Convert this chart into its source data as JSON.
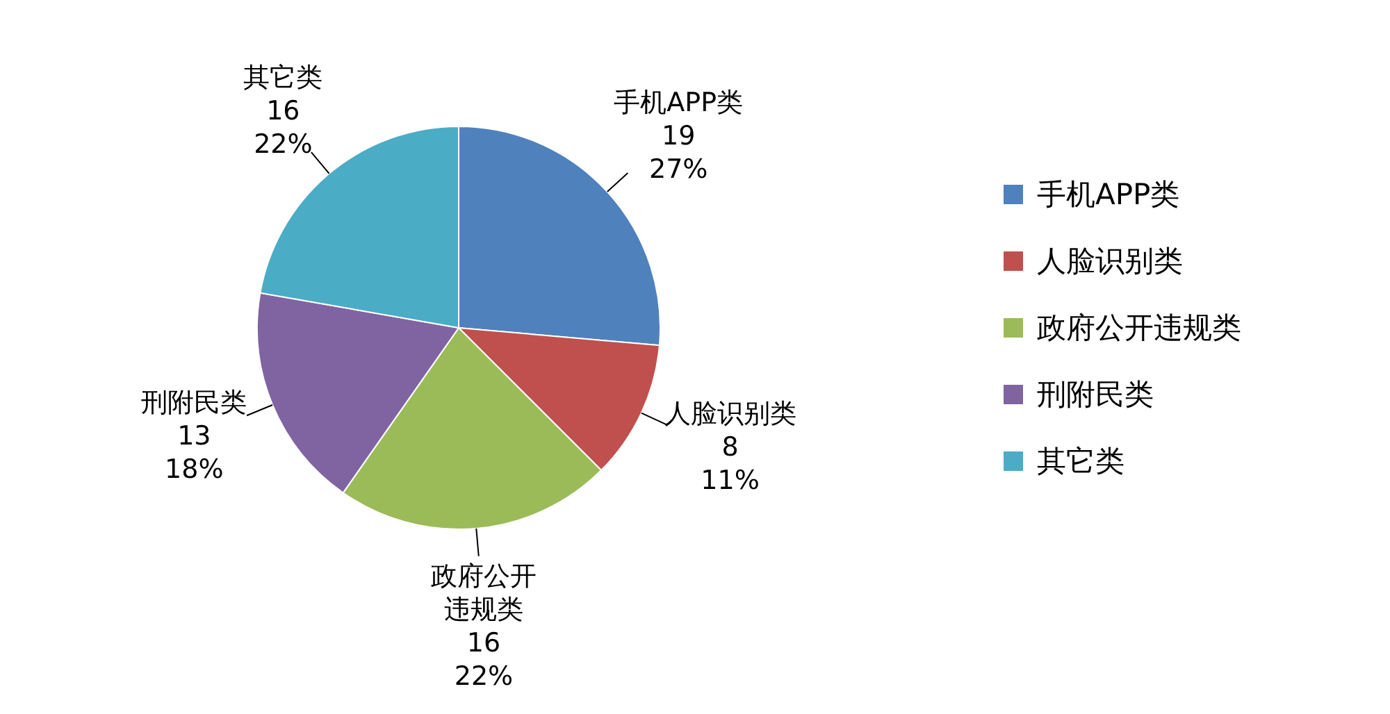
{
  "chart_data": {
    "type": "pie",
    "categories": [
      "手机APP类",
      "人脸识别类",
      "政府公开违规类",
      "刑附民类",
      "其它类"
    ],
    "values": [
      19,
      8,
      16,
      13,
      16
    ],
    "colors": [
      "#4f81bd",
      "#c0504d",
      "#9bbb59",
      "#8064a2",
      "#4bacc6"
    ],
    "value_labels": [
      "19\n27%",
      "8\n11%",
      "16\n22%",
      "13\n18%",
      "16\n22%"
    ],
    "legend": "right"
  }
}
